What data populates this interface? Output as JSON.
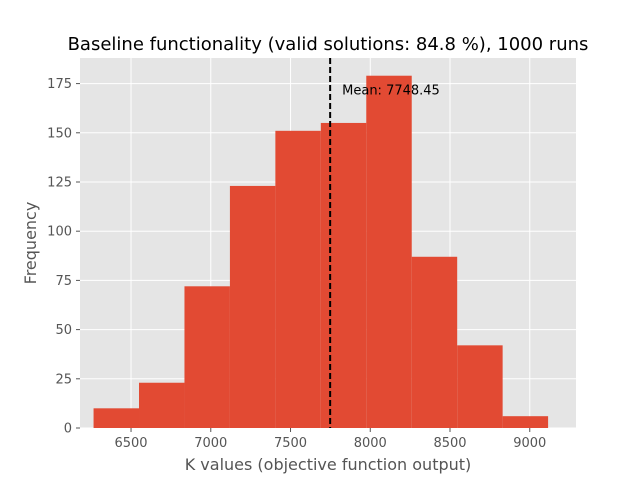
{
  "chart_data": {
    "type": "bar",
    "subtype": "histogram",
    "title": "Baseline functionality (valid solutions: 84.8 %), 1000 runs",
    "xlabel": "K values (objective function output)",
    "ylabel": "Frequency",
    "xlim": [
      6180,
      9290
    ],
    "ylim": [
      0,
      188
    ],
    "xticks": [
      6500,
      7000,
      7500,
      8000,
      8500,
      9000
    ],
    "yticks": [
      0,
      25,
      50,
      75,
      100,
      125,
      150,
      175
    ],
    "bin_edges": [
      6265,
      6550,
      6835,
      7120,
      7405,
      7690,
      7975,
      8260,
      8545,
      8830,
      9115
    ],
    "counts": [
      10,
      23,
      72,
      123,
      151,
      155,
      179,
      87,
      42,
      6
    ],
    "mean": 7748.45,
    "mean_label": "Mean: 7748.45",
    "grid": true,
    "colors": {
      "bar": "#E24A33",
      "plot_background": "#E5E5E5",
      "grid": "#FFFFFF",
      "mean_line": "#000000"
    }
  }
}
